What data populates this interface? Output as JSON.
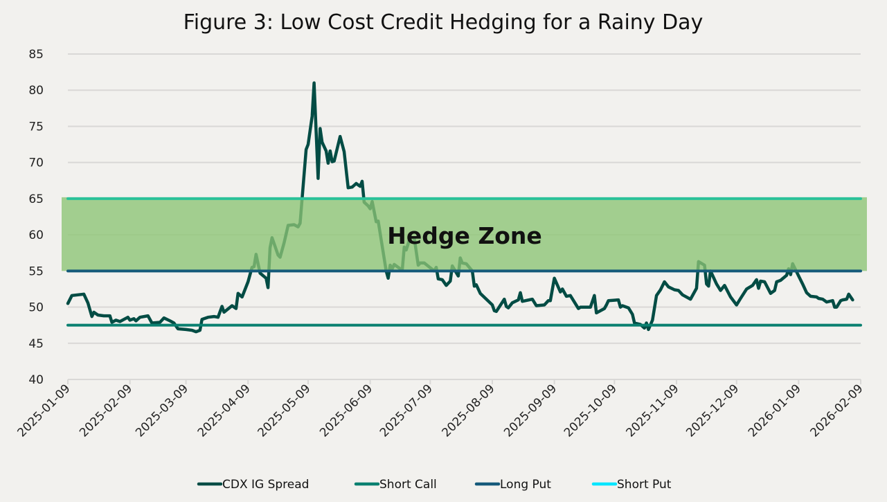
{
  "chart_data": {
    "type": "line",
    "title": "Figure 3: Low Cost Credit Hedging for a Rainy Day",
    "xlabel": "",
    "ylabel": "",
    "ylim": [
      40,
      85
    ],
    "yticks": [
      40,
      45,
      50,
      55,
      60,
      65,
      70,
      75,
      80,
      85
    ],
    "xlim": [
      "2025-01-09",
      "2026-02-09"
    ],
    "xticks": [
      "2025-01-09",
      "2025-02-09",
      "2025-03-09",
      "2025-04-09",
      "2025-05-09",
      "2025-06-09",
      "2025-07-09",
      "2025-08-09",
      "2025-09-09",
      "2025-10-09",
      "2025-11-09",
      "2025-12-09",
      "2026-01-09",
      "2026-02-09"
    ],
    "grid": "horizontal",
    "legend_position": "bottom",
    "annotations": [
      {
        "type": "band",
        "label": "Hedge Zone",
        "y_from": 55,
        "y_to": 65,
        "color": "#8cc474"
      }
    ],
    "series": [
      {
        "name": "CDX IG Spread",
        "color": "#034c44",
        "points": [
          [
            "2025-01-09",
            50.5
          ],
          [
            "2025-01-11",
            51.6
          ],
          [
            "2025-01-14",
            51.7
          ],
          [
            "2025-01-17",
            51.8
          ],
          [
            "2025-01-19",
            50.6
          ],
          [
            "2025-01-21",
            48.7
          ],
          [
            "2025-01-22",
            49.3
          ],
          [
            "2025-01-24",
            48.9
          ],
          [
            "2025-01-27",
            48.8
          ],
          [
            "2025-01-30",
            48.8
          ],
          [
            "2025-01-31",
            47.9
          ],
          [
            "2025-02-02",
            48.2
          ],
          [
            "2025-02-04",
            48.0
          ],
          [
            "2025-02-08",
            48.6
          ],
          [
            "2025-02-09",
            48.2
          ],
          [
            "2025-02-11",
            48.4
          ],
          [
            "2025-02-12",
            48.1
          ],
          [
            "2025-02-14",
            48.6
          ],
          [
            "2025-02-18",
            48.8
          ],
          [
            "2025-02-20",
            47.8
          ],
          [
            "2025-02-24",
            47.9
          ],
          [
            "2025-02-26",
            48.5
          ],
          [
            "2025-03-01",
            48.1
          ],
          [
            "2025-03-03",
            47.8
          ],
          [
            "2025-03-05",
            47.0
          ],
          [
            "2025-03-09",
            46.9
          ],
          [
            "2025-03-12",
            46.8
          ],
          [
            "2025-03-14",
            46.6
          ],
          [
            "2025-03-16",
            46.8
          ],
          [
            "2025-03-17",
            48.3
          ],
          [
            "2025-03-20",
            48.6
          ],
          [
            "2025-03-23",
            48.7
          ],
          [
            "2025-03-25",
            48.6
          ],
          [
            "2025-03-27",
            50.1
          ],
          [
            "2025-03-28",
            49.3
          ],
          [
            "2025-04-01",
            50.2
          ],
          [
            "2025-04-03",
            49.8
          ],
          [
            "2025-04-04",
            51.9
          ],
          [
            "2025-04-06",
            51.4
          ],
          [
            "2025-04-09",
            53.5
          ],
          [
            "2025-04-11",
            55.5
          ],
          [
            "2025-04-12",
            55.6
          ],
          [
            "2025-04-13",
            57.3
          ],
          [
            "2025-04-15",
            54.7
          ],
          [
            "2025-04-18",
            54.0
          ],
          [
            "2025-04-19",
            52.7
          ],
          [
            "2025-04-20",
            58.2
          ],
          [
            "2025-04-21",
            59.6
          ],
          [
            "2025-04-24",
            57.2
          ],
          [
            "2025-04-25",
            56.9
          ],
          [
            "2025-04-27",
            58.9
          ],
          [
            "2025-04-29",
            61.3
          ],
          [
            "2025-05-02",
            61.4
          ],
          [
            "2025-05-04",
            61.1
          ],
          [
            "2025-05-05",
            61.6
          ],
          [
            "2025-05-06",
            65.0
          ],
          [
            "2025-05-08",
            71.8
          ],
          [
            "2025-05-09",
            72.5
          ],
          [
            "2025-05-11",
            76.4
          ],
          [
            "2025-05-12",
            81.0
          ],
          [
            "2025-05-14",
            67.8
          ],
          [
            "2025-05-15",
            74.7
          ],
          [
            "2025-05-16",
            72.8
          ],
          [
            "2025-05-18",
            71.6
          ],
          [
            "2025-05-19",
            69.9
          ],
          [
            "2025-05-20",
            71.6
          ],
          [
            "2025-05-21",
            70.1
          ],
          [
            "2025-05-22",
            70.2
          ],
          [
            "2025-05-25",
            73.6
          ],
          [
            "2025-05-27",
            71.5
          ],
          [
            "2025-05-29",
            66.5
          ],
          [
            "2025-05-31",
            66.6
          ],
          [
            "2025-06-02",
            67.1
          ],
          [
            "2025-06-04",
            66.7
          ],
          [
            "2025-06-05",
            67.4
          ],
          [
            "2025-06-06",
            64.5
          ],
          [
            "2025-06-08",
            64.0
          ],
          [
            "2025-06-09",
            63.6
          ],
          [
            "2025-06-10",
            64.6
          ],
          [
            "2025-06-12",
            61.8
          ],
          [
            "2025-06-13",
            61.9
          ],
          [
            "2025-06-17",
            55.0
          ],
          [
            "2025-06-18",
            54.0
          ],
          [
            "2025-06-19",
            55.8
          ],
          [
            "2025-06-20",
            55.3
          ],
          [
            "2025-06-21",
            55.9
          ],
          [
            "2025-06-25",
            55.1
          ],
          [
            "2025-06-26",
            58.3
          ],
          [
            "2025-06-27",
            57.9
          ],
          [
            "2025-06-29",
            59.6
          ],
          [
            "2025-07-01",
            59.6
          ],
          [
            "2025-07-03",
            55.8
          ],
          [
            "2025-07-04",
            56.1
          ],
          [
            "2025-07-06",
            56.1
          ],
          [
            "2025-07-11",
            55.0
          ],
          [
            "2025-07-12",
            55.5
          ],
          [
            "2025-07-13",
            53.9
          ],
          [
            "2025-07-15",
            53.8
          ],
          [
            "2025-07-17",
            53.0
          ],
          [
            "2025-07-19",
            53.6
          ],
          [
            "2025-07-20",
            55.7
          ],
          [
            "2025-07-23",
            54.3
          ],
          [
            "2025-07-24",
            56.8
          ],
          [
            "2025-07-25",
            56.1
          ],
          [
            "2025-07-27",
            56.0
          ],
          [
            "2025-07-30",
            55.0
          ],
          [
            "2025-07-31",
            52.9
          ],
          [
            "2025-08-01",
            53.1
          ],
          [
            "2025-08-03",
            51.9
          ],
          [
            "2025-08-09",
            50.3
          ],
          [
            "2025-08-10",
            49.5
          ],
          [
            "2025-08-11",
            49.4
          ],
          [
            "2025-08-15",
            51.1
          ],
          [
            "2025-08-16",
            50.1
          ],
          [
            "2025-08-17",
            49.9
          ],
          [
            "2025-08-19",
            50.6
          ],
          [
            "2025-08-22",
            51.0
          ],
          [
            "2025-08-23",
            52.0
          ],
          [
            "2025-08-24",
            50.8
          ],
          [
            "2025-08-29",
            51.1
          ],
          [
            "2025-08-31",
            50.2
          ],
          [
            "2025-09-04",
            50.3
          ],
          [
            "2025-09-06",
            50.9
          ],
          [
            "2025-09-07",
            50.9
          ],
          [
            "2025-09-09",
            54.0
          ],
          [
            "2025-09-12",
            52.1
          ],
          [
            "2025-09-13",
            52.5
          ],
          [
            "2025-09-15",
            51.5
          ],
          [
            "2025-09-17",
            51.6
          ],
          [
            "2025-09-21",
            49.8
          ],
          [
            "2025-09-22",
            50.0
          ],
          [
            "2025-09-27",
            50.0
          ],
          [
            "2025-09-29",
            51.6
          ],
          [
            "2025-09-30",
            49.2
          ],
          [
            "2025-10-04",
            49.8
          ],
          [
            "2025-10-05",
            50.3
          ],
          [
            "2025-10-06",
            50.9
          ],
          [
            "2025-10-11",
            51.0
          ],
          [
            "2025-10-12",
            50.0
          ],
          [
            "2025-10-13",
            50.2
          ],
          [
            "2025-10-16",
            49.9
          ],
          [
            "2025-10-18",
            49.0
          ],
          [
            "2025-10-19",
            47.8
          ],
          [
            "2025-10-22",
            47.6
          ],
          [
            "2025-10-24",
            47.1
          ],
          [
            "2025-10-25",
            47.8
          ],
          [
            "2025-10-26",
            46.9
          ],
          [
            "2025-10-28",
            48.2
          ],
          [
            "2025-10-30",
            51.6
          ],
          [
            "2025-11-01",
            52.4
          ],
          [
            "2025-11-03",
            53.5
          ],
          [
            "2025-11-05",
            52.8
          ],
          [
            "2025-11-08",
            52.4
          ],
          [
            "2025-11-10",
            52.3
          ],
          [
            "2025-11-12",
            51.7
          ],
          [
            "2025-11-16",
            51.1
          ],
          [
            "2025-11-19",
            52.6
          ],
          [
            "2025-11-20",
            56.3
          ],
          [
            "2025-11-23",
            55.8
          ],
          [
            "2025-11-24",
            53.2
          ],
          [
            "2025-11-25",
            52.9
          ],
          [
            "2025-11-26",
            55.0
          ],
          [
            "2025-11-29",
            53.2
          ],
          [
            "2025-12-01",
            52.3
          ],
          [
            "2025-12-03",
            53.0
          ],
          [
            "2025-12-06",
            51.4
          ],
          [
            "2025-12-09",
            50.3
          ],
          [
            "2025-12-11",
            51.2
          ],
          [
            "2025-12-14",
            52.5
          ],
          [
            "2025-12-17",
            53.0
          ],
          [
            "2025-12-19",
            53.8
          ],
          [
            "2025-12-20",
            52.6
          ],
          [
            "2025-12-21",
            53.6
          ],
          [
            "2025-12-23",
            53.5
          ],
          [
            "2025-12-26",
            51.9
          ],
          [
            "2025-12-28",
            52.3
          ],
          [
            "2025-12-29",
            53.5
          ],
          [
            "2025-12-31",
            53.7
          ],
          [
            "2026-01-03",
            54.4
          ],
          [
            "2026-01-04",
            55.3
          ],
          [
            "2026-01-05",
            54.5
          ],
          [
            "2026-01-06",
            56.0
          ],
          [
            "2026-01-09",
            54.3
          ],
          [
            "2026-01-11",
            53.2
          ],
          [
            "2026-01-13",
            52.0
          ],
          [
            "2026-01-15",
            51.5
          ],
          [
            "2026-01-18",
            51.4
          ],
          [
            "2026-01-19",
            51.2
          ],
          [
            "2026-01-21",
            51.1
          ],
          [
            "2026-01-23",
            50.7
          ],
          [
            "2026-01-26",
            50.9
          ],
          [
            "2026-01-27",
            50.0
          ],
          [
            "2026-01-28",
            50.0
          ],
          [
            "2026-01-30",
            50.9
          ],
          [
            "2026-01-31",
            51.0
          ],
          [
            "2026-02-02",
            51.1
          ],
          [
            "2026-02-03",
            51.8
          ],
          [
            "2026-02-05",
            51.0
          ]
        ]
      },
      {
        "name": "Short Call",
        "color": "#0a8070",
        "value": 47.5
      },
      {
        "name": "Long Put",
        "color": "#155a7a",
        "value": 55
      },
      {
        "name": "Short Put",
        "color": "#00e5ff",
        "value": 65,
        "drawn_color": "#2bc29a"
      }
    ]
  }
}
